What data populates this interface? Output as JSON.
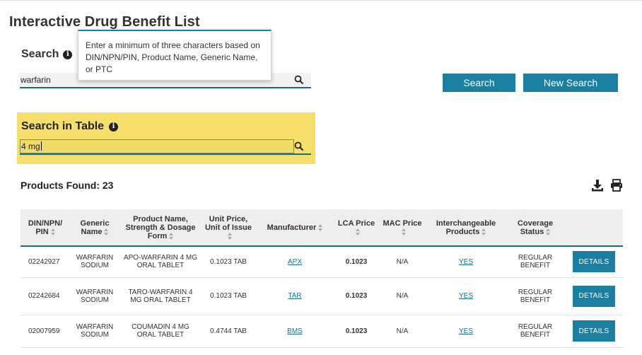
{
  "page": {
    "title": "Interactive Drug Benefit List"
  },
  "search": {
    "heading": "Search",
    "info_icon": "info-icon",
    "value": "warfarin",
    "tooltip": "Enter a minimum of three characters based on DIN/NPN/PIN, Product Name, Generic Name, or PTC",
    "search_button": "Search",
    "new_search_button": "New Search",
    "search_icon": "search-icon"
  },
  "table_search": {
    "heading": "Search in Table",
    "value": "4 mg",
    "highlight_color": "#f5df6a"
  },
  "results": {
    "label": "Products Found: 23",
    "download_icon": "download-icon",
    "print_icon": "print-icon"
  },
  "table": {
    "headers": {
      "din": "DIN/NPN/ PIN",
      "generic": "Generic Name",
      "product": "Product Name, Strength & Dosage Form",
      "unit_price": "Unit Price, Unit of Issue",
      "manufacturer": "Manufacturer",
      "lca": "LCA Price",
      "mac": "MAC Price",
      "interchangeable": "Interchangeable Products",
      "coverage": "Coverage Status"
    },
    "rows": [
      {
        "din": "02242927",
        "generic": "WARFARIN SODIUM",
        "product": "APO-WARFARIN 4 MG ORAL TABLET",
        "unit_price": "0.1023 TAB",
        "manufacturer": "APX",
        "lca": "0.1023",
        "mac": "N/A",
        "interchangeable": "YES",
        "coverage": "REGULAR BENEFIT",
        "action": "DETAILS"
      },
      {
        "din": "02242684",
        "generic": "WARFARIN SODIUM",
        "product": "TARO-WARFARIN 4 MG ORAL TABLET",
        "unit_price": "0.1023 TAB",
        "manufacturer": "TAR",
        "lca": "0.1023",
        "mac": "N/A",
        "interchangeable": "YES",
        "coverage": "REGULAR BENEFIT",
        "action": "DETAILS"
      },
      {
        "din": "02007959",
        "generic": "WARFARIN SODIUM",
        "product": "COUMADIN 4 MG ORAL TABLET",
        "unit_price": "0.4744 TAB",
        "manufacturer": "BMS",
        "lca": "0.1023",
        "mac": "N/A",
        "interchangeable": "YES",
        "coverage": "REGULAR BENEFIT",
        "action": "DETAILS"
      }
    ]
  },
  "colors": {
    "accent": "#1a7fa1",
    "underline": "#1d6b7c",
    "link": "#1a6f8f"
  }
}
